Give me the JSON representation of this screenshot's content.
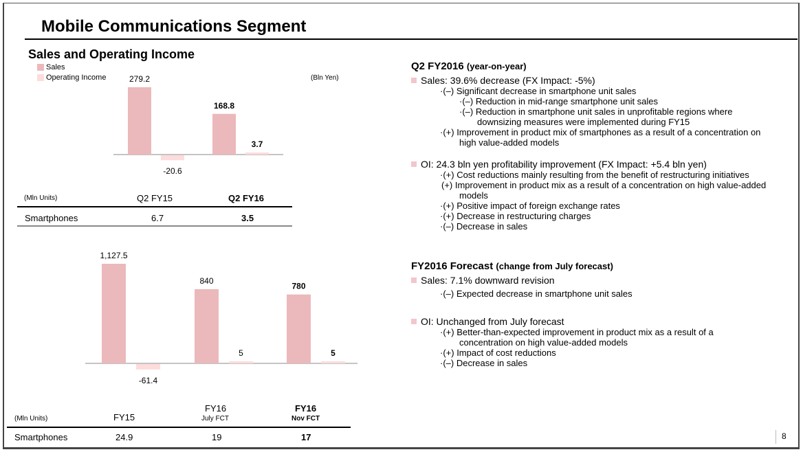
{
  "page": {
    "title": "Mobile Communications Segment",
    "subtitle": "Sales and Operating Income",
    "page_number": "8"
  },
  "legend": {
    "sales": "Sales",
    "operating_income": "Operating Income"
  },
  "colors": {
    "sales": "#ebb9bb",
    "operating_income": "#fddcdc",
    "bullet": "#f2c6cc"
  },
  "top_chart_unit": "(Bln Yen)",
  "chart_data": [
    {
      "type": "bar",
      "title": "Quarterly Sales and Operating Income",
      "unit": "Bln Yen",
      "categories": [
        "Q2 FY15",
        "Q2 FY16"
      ],
      "series": [
        {
          "name": "Sales",
          "values": [
            279.2,
            168.8
          ],
          "labels": [
            "279.2",
            "168.8"
          ]
        },
        {
          "name": "Operating Income",
          "values": [
            -20.6,
            3.7
          ],
          "labels": [
            "-20.6",
            "3.7"
          ]
        }
      ],
      "bold_category": "Q2 FY16"
    },
    {
      "type": "bar",
      "title": "Fiscal Year Sales and Operating Income",
      "unit": "Bln Yen",
      "categories": [
        "FY15",
        "FY16 July FCT",
        "FY16 Nov FCT"
      ],
      "series": [
        {
          "name": "Sales",
          "values": [
            1127.5,
            840,
            780
          ],
          "labels": [
            "1,127.5",
            "840",
            "780"
          ]
        },
        {
          "name": "Operating Income",
          "values": [
            -61.4,
            5,
            5
          ],
          "labels": [
            "-61.4",
            "5",
            "5"
          ]
        }
      ],
      "bold_category": "FY16 Nov FCT"
    }
  ],
  "table1": {
    "unit": "(Mln Units)",
    "headers": [
      "Q2 FY15",
      "Q2 FY16"
    ],
    "row_label": "Smartphones",
    "values": [
      "6.7",
      "3.5"
    ]
  },
  "table2": {
    "unit": "(Mln Units)",
    "headers": [
      {
        "main": "FY15",
        "sub": ""
      },
      {
        "main": "FY16",
        "sub": "July FCT"
      },
      {
        "main": "FY16",
        "sub": "Nov FCT"
      }
    ],
    "row_label": "Smartphones",
    "values": [
      "24.9",
      "19",
      "17"
    ]
  },
  "commentary": {
    "q2": {
      "heading": "Q2 FY2016",
      "heading_note": "(year-on-year)",
      "sales": "Sales: 39.6% decrease (FX Impact:  -5%)",
      "sales_points": [
        "·(–) Significant decrease in smartphone unit sales",
        "·(–) Reduction in mid-range smartphone unit sales",
        "·(–) Reduction in smartphone unit sales in unprofitable regions where",
        "downsizing measures were implemented during FY15",
        "·(+) Improvement in product mix of smartphones as a result of a concentration on",
        "high value-added models"
      ],
      "oi": "OI: 24.3 bln yen profitability improvement  (FX Impact:  +5.4 bln yen)",
      "oi_points": [
        "·(+) Cost reductions mainly resulting from the benefit of restructuring initiatives",
        "(+) Improvement in product mix as a result of a concentration on high value-added",
        "models",
        "·(+) Positive impact of foreign exchange rates",
        "·(+) Decrease in restructuring charges",
        "·(–) Decrease in sales"
      ]
    },
    "forecast": {
      "heading": "FY2016 Forecast",
      "heading_note": "(change from July forecast)",
      "sales": "Sales: 7.1% downward revision",
      "sales_points": [
        "·(–) Expected decrease in smartphone unit sales"
      ],
      "oi": "OI: Unchanged from July forecast",
      "oi_points": [
        "·(+) Better-than-expected improvement in product mix as a result of a",
        "concentration on high value-added models",
        "·(+) Impact of cost reductions",
        "·(–) Decrease in sales"
      ]
    }
  }
}
